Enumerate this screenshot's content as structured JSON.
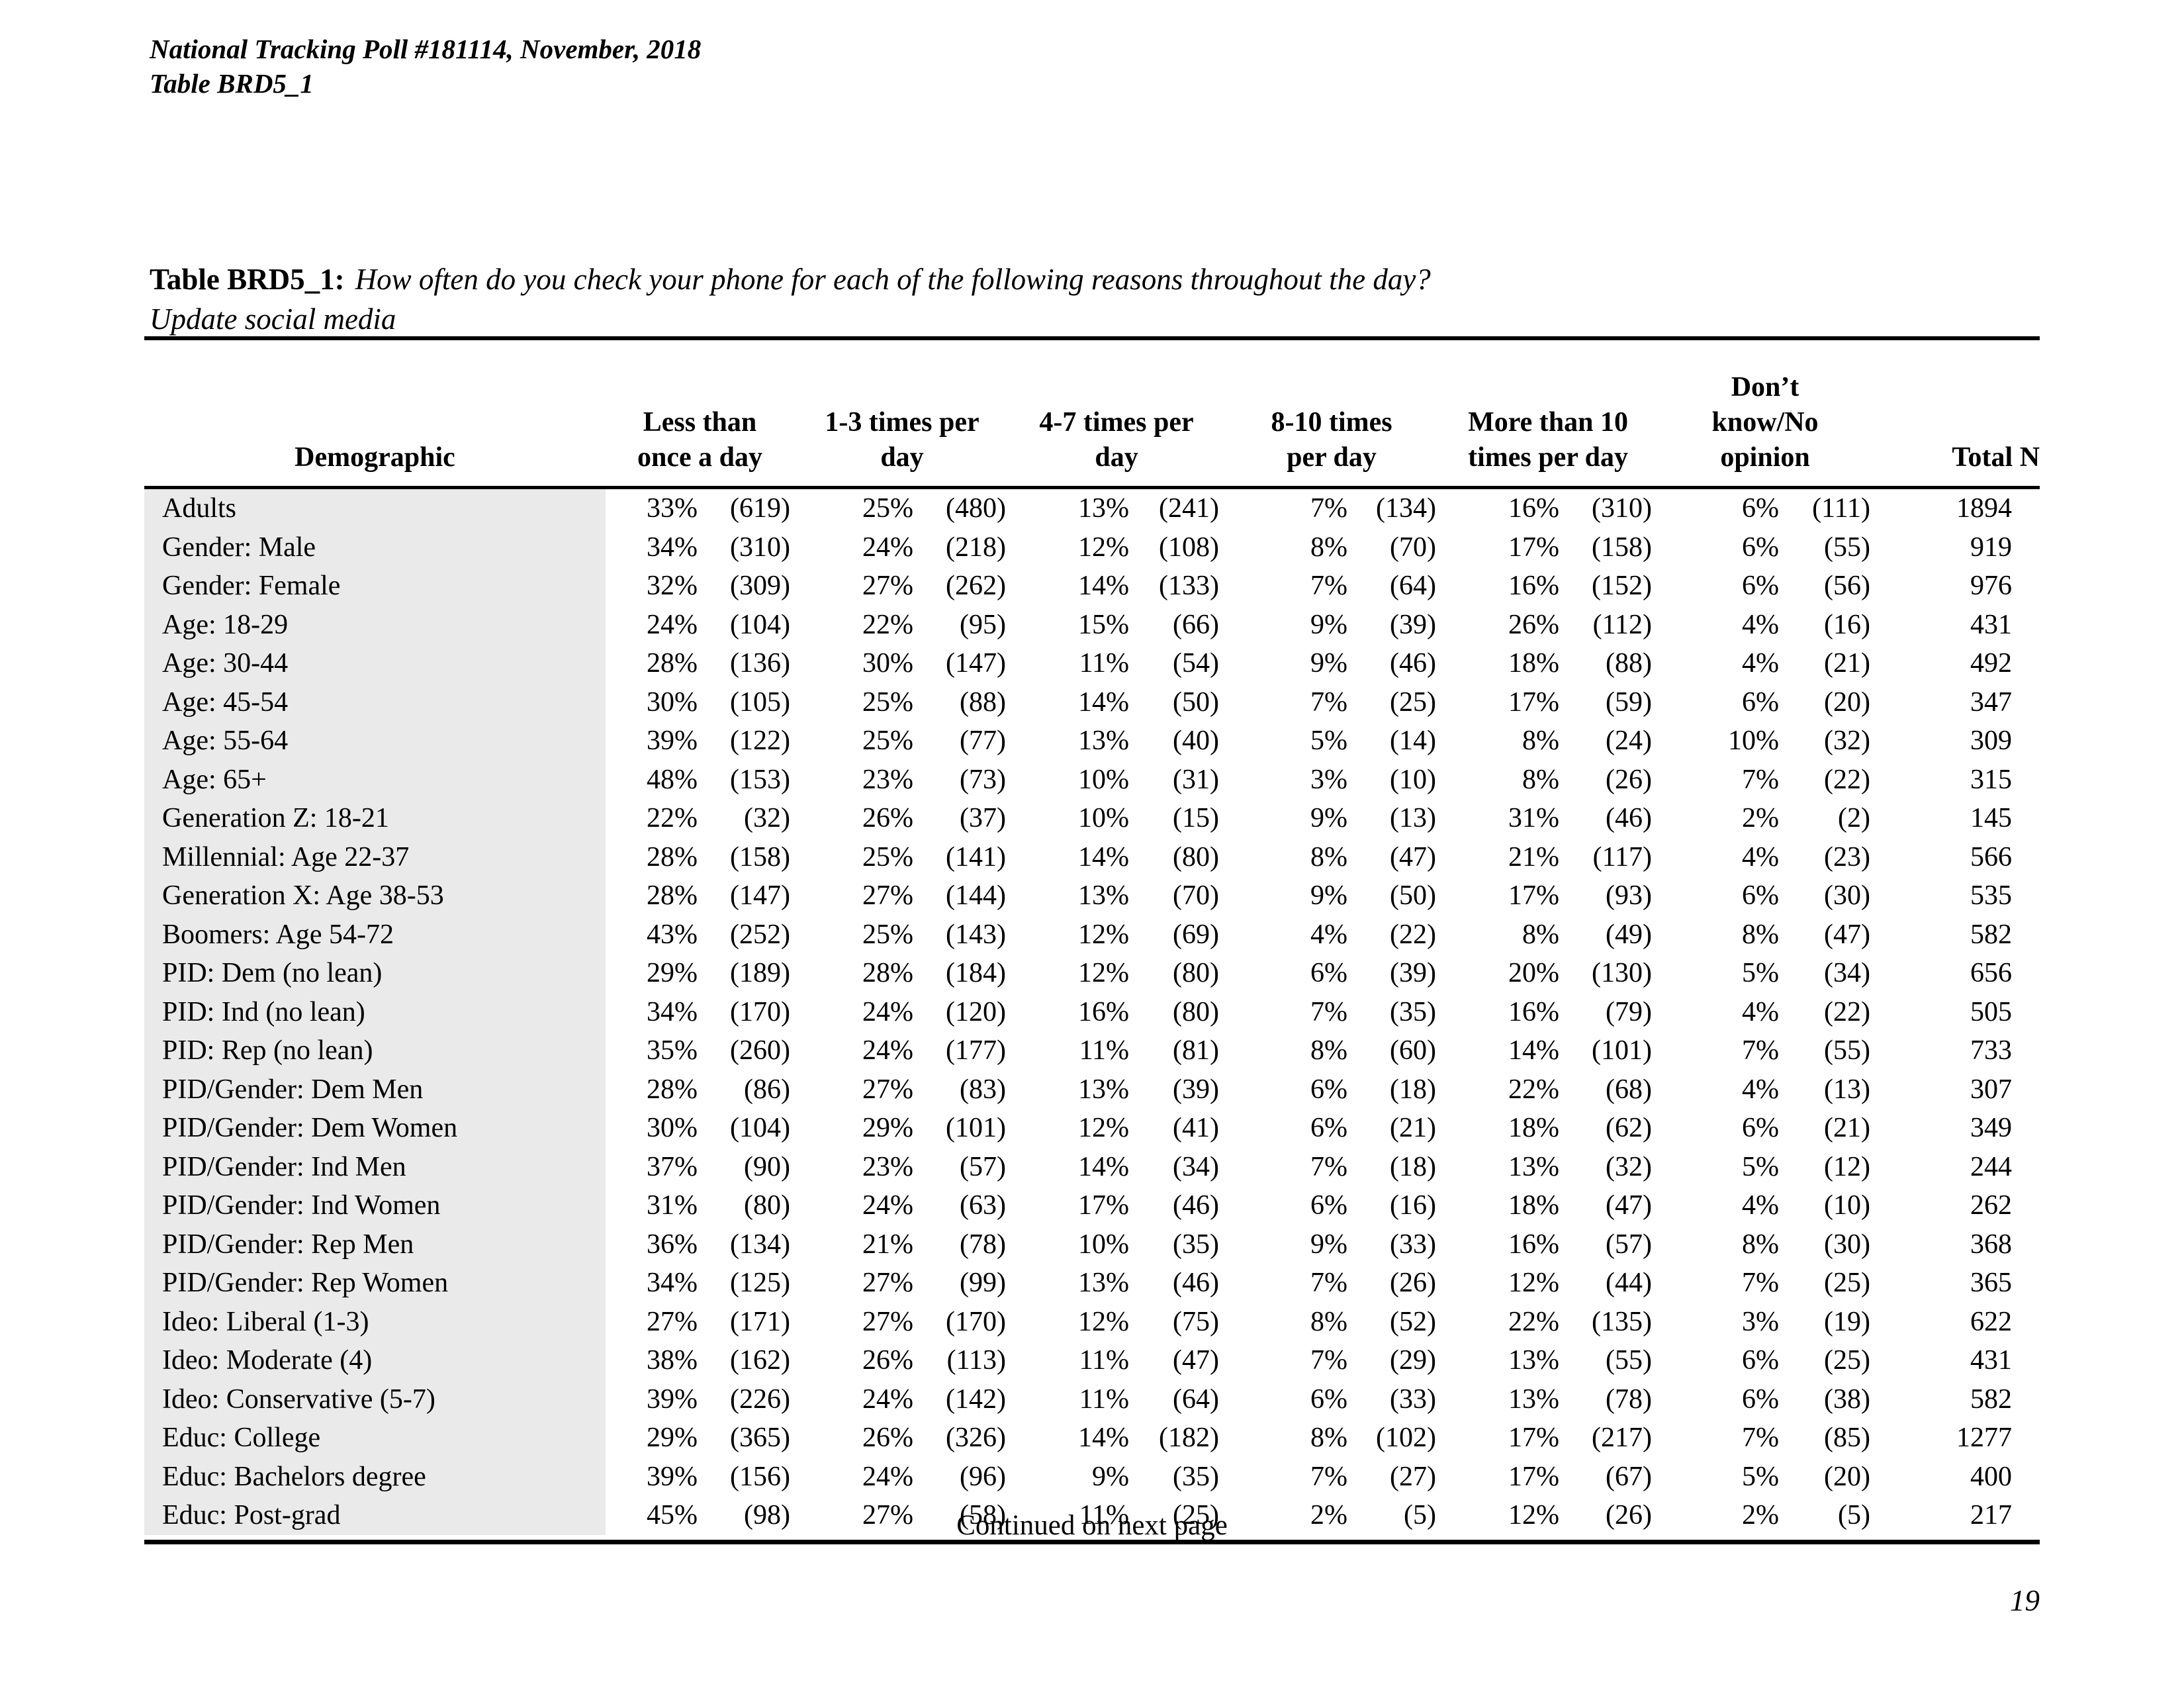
{
  "header": {
    "line1": "National Tracking Poll #181114, November, 2018",
    "line2": "Table BRD5_1"
  },
  "title": {
    "prefix": "Table BRD5_1:",
    "question": "How often do you check your phone for each of the following reasons throughout the day?",
    "subtitle": "Update social media"
  },
  "colors": {
    "label_column_bg": "#eaeaea",
    "rule": "#000000",
    "text": "#000000"
  },
  "table": {
    "demographic_label": "Demographic",
    "total_label": "Total N",
    "columns": [
      {
        "label": "Less than\nonce a day"
      },
      {
        "label": "1-3 times per\nday"
      },
      {
        "label": "4-7 times per\nday"
      },
      {
        "label": "8-10 times\nper day"
      },
      {
        "label": "More than 10\ntimes per day"
      },
      {
        "label": "Don’t\nknow/No\nopinion"
      }
    ],
    "rows": [
      {
        "label": "Adults",
        "cells": [
          [
            "33%",
            "(619)"
          ],
          [
            "25%",
            "(480)"
          ],
          [
            "13%",
            "(241)"
          ],
          [
            "7%",
            "(134)"
          ],
          [
            "16%",
            "(310)"
          ],
          [
            "6%",
            "(111)"
          ]
        ],
        "total": "1894"
      },
      {
        "label": "Gender: Male",
        "cells": [
          [
            "34%",
            "(310)"
          ],
          [
            "24%",
            "(218)"
          ],
          [
            "12%",
            "(108)"
          ],
          [
            "8%",
            "(70)"
          ],
          [
            "17%",
            "(158)"
          ],
          [
            "6%",
            "(55)"
          ]
        ],
        "total": "919"
      },
      {
        "label": "Gender: Female",
        "cells": [
          [
            "32%",
            "(309)"
          ],
          [
            "27%",
            "(262)"
          ],
          [
            "14%",
            "(133)"
          ],
          [
            "7%",
            "(64)"
          ],
          [
            "16%",
            "(152)"
          ],
          [
            "6%",
            "(56)"
          ]
        ],
        "total": "976"
      },
      {
        "label": "Age: 18-29",
        "cells": [
          [
            "24%",
            "(104)"
          ],
          [
            "22%",
            "(95)"
          ],
          [
            "15%",
            "(66)"
          ],
          [
            "9%",
            "(39)"
          ],
          [
            "26%",
            "(112)"
          ],
          [
            "4%",
            "(16)"
          ]
        ],
        "total": "431"
      },
      {
        "label": "Age: 30-44",
        "cells": [
          [
            "28%",
            "(136)"
          ],
          [
            "30%",
            "(147)"
          ],
          [
            "11%",
            "(54)"
          ],
          [
            "9%",
            "(46)"
          ],
          [
            "18%",
            "(88)"
          ],
          [
            "4%",
            "(21)"
          ]
        ],
        "total": "492"
      },
      {
        "label": "Age: 45-54",
        "cells": [
          [
            "30%",
            "(105)"
          ],
          [
            "25%",
            "(88)"
          ],
          [
            "14%",
            "(50)"
          ],
          [
            "7%",
            "(25)"
          ],
          [
            "17%",
            "(59)"
          ],
          [
            "6%",
            "(20)"
          ]
        ],
        "total": "347"
      },
      {
        "label": "Age: 55-64",
        "cells": [
          [
            "39%",
            "(122)"
          ],
          [
            "25%",
            "(77)"
          ],
          [
            "13%",
            "(40)"
          ],
          [
            "5%",
            "(14)"
          ],
          [
            "8%",
            "(24)"
          ],
          [
            "10%",
            "(32)"
          ]
        ],
        "total": "309"
      },
      {
        "label": "Age: 65+",
        "cells": [
          [
            "48%",
            "(153)"
          ],
          [
            "23%",
            "(73)"
          ],
          [
            "10%",
            "(31)"
          ],
          [
            "3%",
            "(10)"
          ],
          [
            "8%",
            "(26)"
          ],
          [
            "7%",
            "(22)"
          ]
        ],
        "total": "315"
      },
      {
        "label": "Generation Z: 18-21",
        "cells": [
          [
            "22%",
            "(32)"
          ],
          [
            "26%",
            "(37)"
          ],
          [
            "10%",
            "(15)"
          ],
          [
            "9%",
            "(13)"
          ],
          [
            "31%",
            "(46)"
          ],
          [
            "2%",
            "(2)"
          ]
        ],
        "total": "145"
      },
      {
        "label": "Millennial: Age 22-37",
        "cells": [
          [
            "28%",
            "(158)"
          ],
          [
            "25%",
            "(141)"
          ],
          [
            "14%",
            "(80)"
          ],
          [
            "8%",
            "(47)"
          ],
          [
            "21%",
            "(117)"
          ],
          [
            "4%",
            "(23)"
          ]
        ],
        "total": "566"
      },
      {
        "label": "Generation X: Age 38-53",
        "cells": [
          [
            "28%",
            "(147)"
          ],
          [
            "27%",
            "(144)"
          ],
          [
            "13%",
            "(70)"
          ],
          [
            "9%",
            "(50)"
          ],
          [
            "17%",
            "(93)"
          ],
          [
            "6%",
            "(30)"
          ]
        ],
        "total": "535"
      },
      {
        "label": "Boomers: Age 54-72",
        "cells": [
          [
            "43%",
            "(252)"
          ],
          [
            "25%",
            "(143)"
          ],
          [
            "12%",
            "(69)"
          ],
          [
            "4%",
            "(22)"
          ],
          [
            "8%",
            "(49)"
          ],
          [
            "8%",
            "(47)"
          ]
        ],
        "total": "582"
      },
      {
        "label": "PID: Dem (no lean)",
        "cells": [
          [
            "29%",
            "(189)"
          ],
          [
            "28%",
            "(184)"
          ],
          [
            "12%",
            "(80)"
          ],
          [
            "6%",
            "(39)"
          ],
          [
            "20%",
            "(130)"
          ],
          [
            "5%",
            "(34)"
          ]
        ],
        "total": "656"
      },
      {
        "label": "PID: Ind (no lean)",
        "cells": [
          [
            "34%",
            "(170)"
          ],
          [
            "24%",
            "(120)"
          ],
          [
            "16%",
            "(80)"
          ],
          [
            "7%",
            "(35)"
          ],
          [
            "16%",
            "(79)"
          ],
          [
            "4%",
            "(22)"
          ]
        ],
        "total": "505"
      },
      {
        "label": "PID: Rep (no lean)",
        "cells": [
          [
            "35%",
            "(260)"
          ],
          [
            "24%",
            "(177)"
          ],
          [
            "11%",
            "(81)"
          ],
          [
            "8%",
            "(60)"
          ],
          [
            "14%",
            "(101)"
          ],
          [
            "7%",
            "(55)"
          ]
        ],
        "total": "733"
      },
      {
        "label": "PID/Gender: Dem Men",
        "cells": [
          [
            "28%",
            "(86)"
          ],
          [
            "27%",
            "(83)"
          ],
          [
            "13%",
            "(39)"
          ],
          [
            "6%",
            "(18)"
          ],
          [
            "22%",
            "(68)"
          ],
          [
            "4%",
            "(13)"
          ]
        ],
        "total": "307"
      },
      {
        "label": "PID/Gender: Dem Women",
        "cells": [
          [
            "30%",
            "(104)"
          ],
          [
            "29%",
            "(101)"
          ],
          [
            "12%",
            "(41)"
          ],
          [
            "6%",
            "(21)"
          ],
          [
            "18%",
            "(62)"
          ],
          [
            "6%",
            "(21)"
          ]
        ],
        "total": "349"
      },
      {
        "label": "PID/Gender: Ind Men",
        "cells": [
          [
            "37%",
            "(90)"
          ],
          [
            "23%",
            "(57)"
          ],
          [
            "14%",
            "(34)"
          ],
          [
            "7%",
            "(18)"
          ],
          [
            "13%",
            "(32)"
          ],
          [
            "5%",
            "(12)"
          ]
        ],
        "total": "244"
      },
      {
        "label": "PID/Gender: Ind Women",
        "cells": [
          [
            "31%",
            "(80)"
          ],
          [
            "24%",
            "(63)"
          ],
          [
            "17%",
            "(46)"
          ],
          [
            "6%",
            "(16)"
          ],
          [
            "18%",
            "(47)"
          ],
          [
            "4%",
            "(10)"
          ]
        ],
        "total": "262"
      },
      {
        "label": "PID/Gender: Rep Men",
        "cells": [
          [
            "36%",
            "(134)"
          ],
          [
            "21%",
            "(78)"
          ],
          [
            "10%",
            "(35)"
          ],
          [
            "9%",
            "(33)"
          ],
          [
            "16%",
            "(57)"
          ],
          [
            "8%",
            "(30)"
          ]
        ],
        "total": "368"
      },
      {
        "label": "PID/Gender: Rep Women",
        "cells": [
          [
            "34%",
            "(125)"
          ],
          [
            "27%",
            "(99)"
          ],
          [
            "13%",
            "(46)"
          ],
          [
            "7%",
            "(26)"
          ],
          [
            "12%",
            "(44)"
          ],
          [
            "7%",
            "(25)"
          ]
        ],
        "total": "365"
      },
      {
        "label": "Ideo: Liberal (1-3)",
        "cells": [
          [
            "27%",
            "(171)"
          ],
          [
            "27%",
            "(170)"
          ],
          [
            "12%",
            "(75)"
          ],
          [
            "8%",
            "(52)"
          ],
          [
            "22%",
            "(135)"
          ],
          [
            "3%",
            "(19)"
          ]
        ],
        "total": "622"
      },
      {
        "label": "Ideo: Moderate (4)",
        "cells": [
          [
            "38%",
            "(162)"
          ],
          [
            "26%",
            "(113)"
          ],
          [
            "11%",
            "(47)"
          ],
          [
            "7%",
            "(29)"
          ],
          [
            "13%",
            "(55)"
          ],
          [
            "6%",
            "(25)"
          ]
        ],
        "total": "431"
      },
      {
        "label": "Ideo: Conservative (5-7)",
        "cells": [
          [
            "39%",
            "(226)"
          ],
          [
            "24%",
            "(142)"
          ],
          [
            "11%",
            "(64)"
          ],
          [
            "6%",
            "(33)"
          ],
          [
            "13%",
            "(78)"
          ],
          [
            "6%",
            "(38)"
          ]
        ],
        "total": "582"
      },
      {
        "label": "Educ:  College",
        "cells": [
          [
            "29%",
            "(365)"
          ],
          [
            "26%",
            "(326)"
          ],
          [
            "14%",
            "(182)"
          ],
          [
            "8%",
            "(102)"
          ],
          [
            "17%",
            "(217)"
          ],
          [
            "7%",
            "(85)"
          ]
        ],
        "total": "1277"
      },
      {
        "label": "Educ: Bachelors degree",
        "cells": [
          [
            "39%",
            "(156)"
          ],
          [
            "24%",
            "(96)"
          ],
          [
            "9%",
            "(35)"
          ],
          [
            "7%",
            "(27)"
          ],
          [
            "17%",
            "(67)"
          ],
          [
            "5%",
            "(20)"
          ]
        ],
        "total": "400"
      },
      {
        "label": "Educ: Post-grad",
        "cells": [
          [
            "45%",
            "(98)"
          ],
          [
            "27%",
            "(58)"
          ],
          [
            "11%",
            "(25)"
          ],
          [
            "2%",
            "(5)"
          ],
          [
            "12%",
            "(26)"
          ],
          [
            "2%",
            "(5)"
          ]
        ],
        "total": "217"
      }
    ]
  },
  "footer": {
    "continued": "Continued on next page",
    "page_number": "19"
  }
}
